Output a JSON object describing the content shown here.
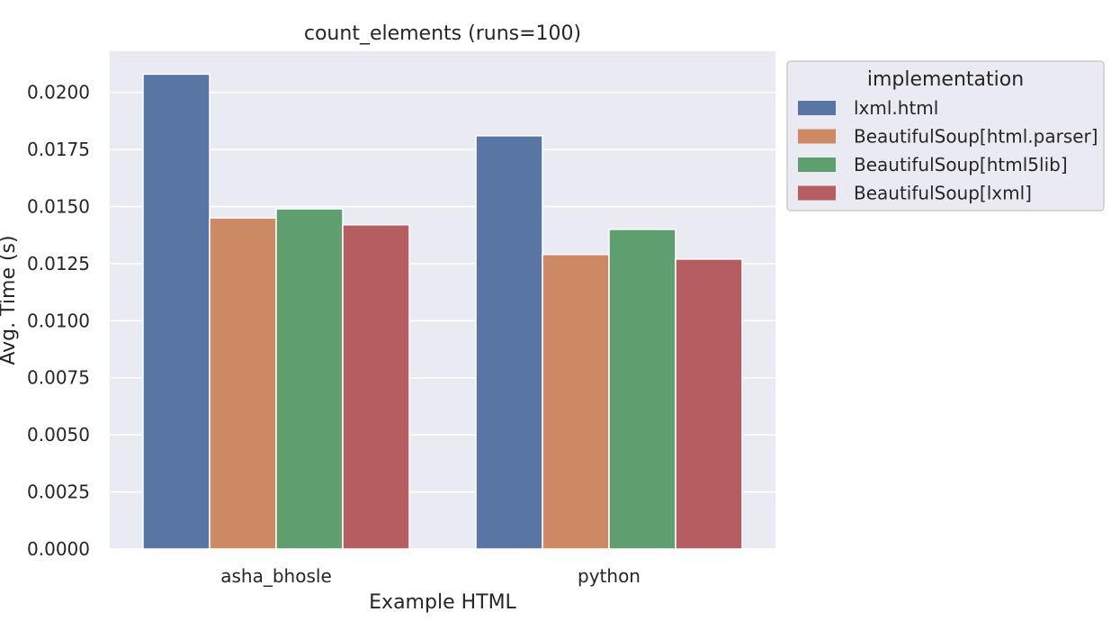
{
  "chart_data": {
    "type": "bar",
    "title": "count_elements (runs=100)",
    "xlabel": "Example HTML",
    "ylabel": "Avg. Time (s)",
    "categories": [
      "asha_bhosle",
      "python"
    ],
    "series": [
      {
        "name": "lxml.html",
        "color": "#5975a4",
        "values": [
          0.0208,
          0.0181
        ]
      },
      {
        "name": "BeautifulSoup[html.parser]",
        "color": "#cc8963",
        "values": [
          0.0145,
          0.0129
        ]
      },
      {
        "name": "BeautifulSoup[html5lib]",
        "color": "#5f9e6e",
        "values": [
          0.0149,
          0.014
        ]
      },
      {
        "name": "BeautifulSoup[lxml]",
        "color": "#b55d60",
        "values": [
          0.0142,
          0.0127
        ]
      }
    ],
    "ylim": [
      0,
      0.0218
    ],
    "yticks": [
      "0.0000",
      "0.0025",
      "0.0050",
      "0.0075",
      "0.0100",
      "0.0125",
      "0.0150",
      "0.0175",
      "0.0200"
    ],
    "legend_title": "implementation",
    "legend_position": "outside-right-top",
    "grid": true,
    "plot_background": "#eaeaf2"
  }
}
